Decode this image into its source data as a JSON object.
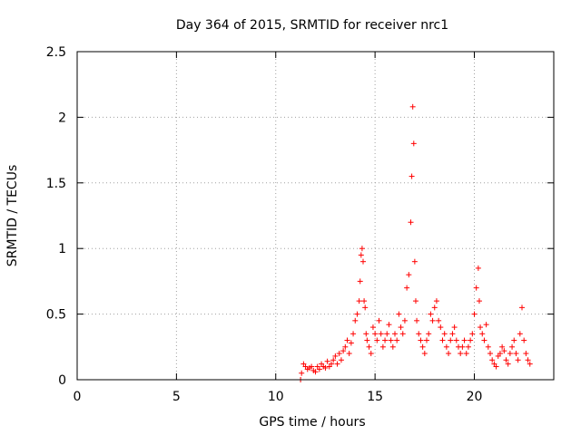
{
  "chart_data": {
    "type": "scatter",
    "title": "Day 364 of 2015, SRMTID for receiver nrc1",
    "xlabel": "GPS time / hours",
    "ylabel": "SRMTID / TECUs",
    "xlim": [
      0,
      24
    ],
    "ylim": [
      0,
      2.5
    ],
    "xticks": [
      0,
      5,
      10,
      15,
      20
    ],
    "yticks": [
      0,
      0.5,
      1,
      1.5,
      2,
      2.5
    ],
    "xtick_labels": [
      "0",
      "5",
      "10",
      "15",
      "20"
    ],
    "ytick_labels": [
      "0",
      "0.5",
      "1",
      "1.5",
      "2",
      "2.5"
    ],
    "grid": true,
    "marker": "+",
    "series": [
      {
        "name": "SRMTID",
        "color": "#ff0000",
        "x": [
          11.25,
          11.3,
          11.4,
          11.5,
          11.6,
          11.7,
          11.8,
          11.9,
          12.0,
          12.1,
          12.2,
          12.3,
          12.4,
          12.5,
          12.6,
          12.7,
          12.8,
          12.9,
          13.0,
          13.1,
          13.2,
          13.3,
          13.4,
          13.5,
          13.6,
          13.7,
          13.8,
          13.9,
          14.0,
          14.1,
          14.2,
          14.25,
          14.3,
          14.35,
          14.4,
          14.45,
          14.5,
          14.55,
          14.6,
          14.7,
          14.8,
          14.9,
          15.0,
          15.1,
          15.2,
          15.3,
          15.4,
          15.5,
          15.6,
          15.7,
          15.8,
          15.9,
          16.0,
          16.1,
          16.2,
          16.3,
          16.4,
          16.5,
          16.6,
          16.7,
          16.8,
          16.85,
          16.9,
          16.95,
          17.0,
          17.05,
          17.1,
          17.2,
          17.3,
          17.4,
          17.5,
          17.6,
          17.7,
          17.8,
          17.9,
          18.0,
          18.1,
          18.2,
          18.3,
          18.4,
          18.5,
          18.6,
          18.7,
          18.8,
          18.9,
          19.0,
          19.1,
          19.2,
          19.3,
          19.4,
          19.5,
          19.6,
          19.7,
          19.8,
          19.9,
          20.0,
          20.1,
          20.2,
          20.25,
          20.3,
          20.4,
          20.5,
          20.6,
          20.7,
          20.8,
          20.9,
          21.0,
          21.1,
          21.2,
          21.3,
          21.4,
          21.5,
          21.6,
          21.7,
          21.8,
          21.9,
          22.0,
          22.1,
          22.2,
          22.3,
          22.4,
          22.5,
          22.6,
          22.7,
          22.8
        ],
        "y": [
          0.0,
          0.05,
          0.12,
          0.1,
          0.08,
          0.09,
          0.1,
          0.07,
          0.06,
          0.1,
          0.08,
          0.12,
          0.1,
          0.09,
          0.14,
          0.1,
          0.12,
          0.15,
          0.18,
          0.12,
          0.2,
          0.15,
          0.22,
          0.25,
          0.3,
          0.2,
          0.28,
          0.35,
          0.45,
          0.5,
          0.6,
          0.75,
          0.95,
          1.0,
          0.9,
          0.6,
          0.55,
          0.35,
          0.3,
          0.25,
          0.2,
          0.4,
          0.35,
          0.3,
          0.45,
          0.35,
          0.25,
          0.3,
          0.35,
          0.42,
          0.3,
          0.25,
          0.35,
          0.3,
          0.5,
          0.4,
          0.35,
          0.45,
          0.7,
          0.8,
          1.2,
          1.55,
          2.08,
          1.8,
          0.9,
          0.6,
          0.45,
          0.35,
          0.3,
          0.25,
          0.2,
          0.3,
          0.35,
          0.5,
          0.45,
          0.55,
          0.6,
          0.45,
          0.4,
          0.3,
          0.35,
          0.25,
          0.2,
          0.3,
          0.35,
          0.4,
          0.3,
          0.25,
          0.2,
          0.25,
          0.3,
          0.2,
          0.25,
          0.3,
          0.35,
          0.5,
          0.7,
          0.85,
          0.6,
          0.4,
          0.35,
          0.3,
          0.42,
          0.25,
          0.2,
          0.15,
          0.12,
          0.1,
          0.18,
          0.2,
          0.25,
          0.22,
          0.15,
          0.12,
          0.2,
          0.25,
          0.3,
          0.2,
          0.15,
          0.35,
          0.55,
          0.3,
          0.2,
          0.15,
          0.12
        ]
      }
    ]
  }
}
